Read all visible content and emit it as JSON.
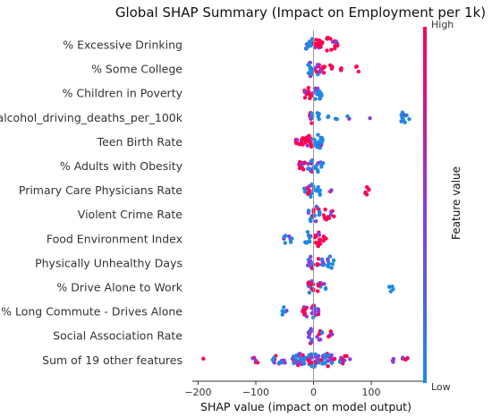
{
  "chart_data": {
    "type": "scatter",
    "title": "Global SHAP Summary (Impact on Employment per 1k)",
    "xlabel": "SHAP value (impact on model output)",
    "xlim": [
      -210,
      193
    ],
    "xticks": [
      -200,
      -100,
      0,
      100
    ],
    "xtick_labels": [
      "−200",
      "−100",
      "0",
      "100"
    ],
    "colorbar": {
      "label": "Feature value",
      "high": "High",
      "low": "Low",
      "color_low": "#1e88e5",
      "color_high": "#ff0052"
    },
    "features": [
      {
        "name": "% Excessive Drinking",
        "clusters": [
          [
            -5,
            9,
            "low",
            18
          ],
          [
            5,
            5,
            "high",
            10
          ],
          [
            25,
            18,
            "high",
            18
          ],
          [
            40,
            3,
            "high",
            4
          ]
        ]
      },
      {
        "name": "% Some College",
        "clusters": [
          [
            -5,
            5,
            "low",
            12
          ],
          [
            8,
            5,
            "mid",
            10
          ],
          [
            18,
            2,
            "high",
            4
          ],
          [
            30,
            3,
            "high",
            3
          ],
          [
            50,
            3,
            "high",
            3
          ],
          [
            75,
            4,
            "high",
            3
          ]
        ]
      },
      {
        "name": "% Children in Poverty",
        "clusters": [
          [
            -10,
            7,
            "high",
            14
          ],
          [
            5,
            6,
            "mid",
            10
          ],
          [
            10,
            4,
            "low",
            10
          ]
        ]
      },
      {
        "name": "alcohol_driving_deaths_per_100k",
        "clusters": [
          [
            -3,
            4,
            "mid",
            12
          ],
          [
            8,
            3,
            "low",
            5
          ],
          [
            25,
            2,
            "low",
            2
          ],
          [
            40,
            2,
            "low",
            2
          ],
          [
            60,
            2,
            "low",
            2
          ],
          [
            97,
            1,
            "low",
            1
          ],
          [
            160,
            8,
            "low",
            12
          ]
        ]
      },
      {
        "name": "Teen Birth Rate",
        "clusters": [
          [
            -25,
            7,
            "high",
            14
          ],
          [
            -8,
            7,
            "high",
            16
          ],
          [
            8,
            8,
            "low",
            22
          ]
        ]
      },
      {
        "name": "% Adults with Obesity",
        "clusters": [
          [
            -20,
            5,
            "high",
            12
          ],
          [
            -5,
            6,
            "mid",
            12
          ],
          [
            8,
            5,
            "low",
            8
          ],
          [
            15,
            3,
            "low",
            3
          ]
        ]
      },
      {
        "name": "Primary Care Physicians Rate",
        "clusters": [
          [
            -15,
            2,
            "low",
            3
          ],
          [
            -5,
            6,
            "mid",
            12
          ],
          [
            10,
            4,
            "low",
            6
          ],
          [
            30,
            2,
            "high",
            2
          ],
          [
            93,
            4,
            "high",
            6
          ]
        ]
      },
      {
        "name": "Violent Crime Rate",
        "clusters": [
          [
            -5,
            4,
            "low",
            8
          ],
          [
            5,
            6,
            "mid",
            12
          ],
          [
            22,
            6,
            "high",
            8
          ],
          [
            33,
            3,
            "high",
            4
          ]
        ]
      },
      {
        "name": "Food Environment Index",
        "clusters": [
          [
            -45,
            8,
            "low",
            8
          ],
          [
            -10,
            6,
            "low",
            10
          ],
          [
            8,
            6,
            "high",
            14
          ],
          [
            20,
            3,
            "high",
            4
          ]
        ]
      },
      {
        "name": "Physically Unhealthy Days",
        "clusters": [
          [
            -5,
            5,
            "mid",
            12
          ],
          [
            12,
            6,
            "mid",
            10
          ],
          [
            30,
            6,
            "low",
            10
          ]
        ]
      },
      {
        "name": "% Drive Alone to Work",
        "clusters": [
          [
            -5,
            5,
            "mid",
            14
          ],
          [
            10,
            5,
            "mid",
            8
          ],
          [
            20,
            3,
            "low",
            3
          ],
          [
            135,
            4,
            "low",
            5
          ]
        ]
      },
      {
        "name": "% Long Commute - Drives Alone",
        "clusters": [
          [
            -50,
            4,
            "low",
            6
          ],
          [
            -15,
            5,
            "high",
            10
          ],
          [
            0,
            4,
            "mid",
            12
          ],
          [
            8,
            3,
            "mid",
            4
          ]
        ]
      },
      {
        "name": "Social Association Rate",
        "clusters": [
          [
            -5,
            4,
            "mid",
            12
          ],
          [
            10,
            5,
            "mid",
            8
          ],
          [
            30,
            4,
            "high",
            6
          ]
        ]
      },
      {
        "name": "Sum of 19 other features",
        "clusters": [
          [
            -190,
            1,
            "high",
            1
          ],
          [
            -100,
            6,
            "high",
            5
          ],
          [
            -60,
            12,
            "mid",
            14
          ],
          [
            -25,
            12,
            "mid",
            30
          ],
          [
            0,
            10,
            "mid",
            40
          ],
          [
            25,
            12,
            "mid",
            26
          ],
          [
            55,
            10,
            "mid",
            12
          ],
          [
            140,
            3,
            "high",
            3
          ],
          [
            158,
            5,
            "high",
            5
          ]
        ]
      }
    ]
  }
}
